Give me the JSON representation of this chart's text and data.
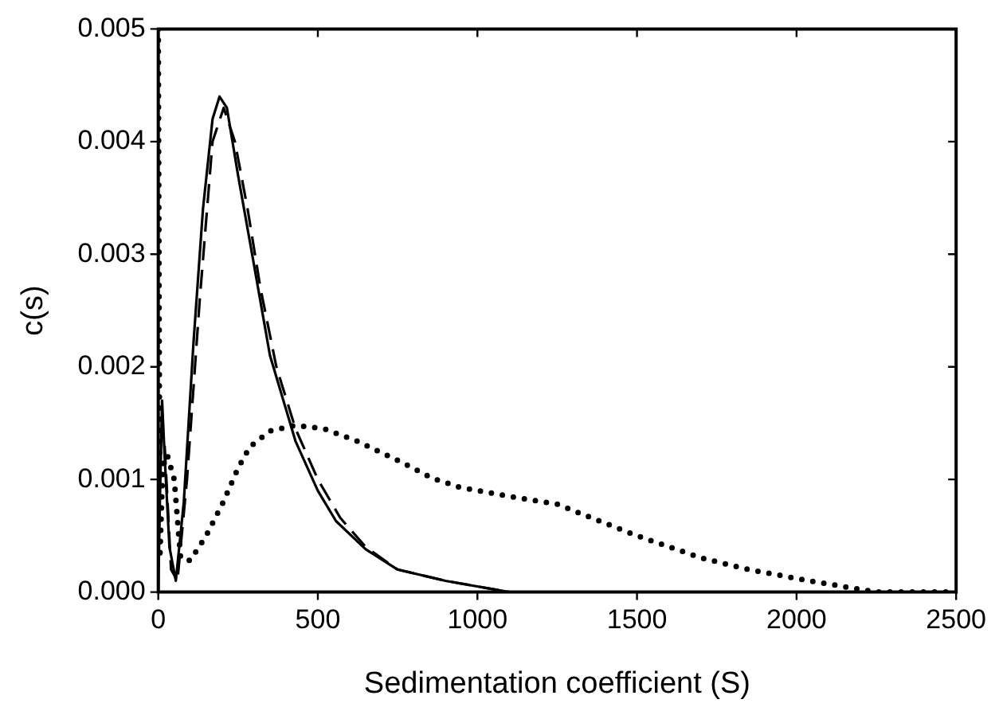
{
  "chart_data": {
    "type": "line",
    "xlabel": "Sedimentation coefficient (S)",
    "ylabel": "c(s)",
    "xlim": [
      0,
      2500
    ],
    "xticks": [
      0,
      500,
      1000,
      1500,
      2000,
      2500
    ],
    "ylim": [
      0,
      0.005
    ],
    "yticks": [
      {
        "value": 0,
        "label": "0.000"
      },
      {
        "value": 0.001,
        "label": "0.001"
      },
      {
        "value": 0.002,
        "label": "0.002"
      },
      {
        "value": 0.003,
        "label": "0.003"
      },
      {
        "value": 0.004,
        "label": "0.004"
      },
      {
        "value": 0.005,
        "label": "0.005"
      }
    ],
    "grid": false,
    "legend": false,
    "marker": "none",
    "series": [
      {
        "color": "#000000",
        "line_style": "solid",
        "x": [
          0,
          5,
          12,
          20,
          35,
          55,
          80,
          110,
          140,
          170,
          192,
          215,
          250,
          294,
          350,
          430,
          500,
          557,
          650,
          750,
          900,
          1100,
          1500,
          2500
        ],
        "values": [
          0,
          0.0008,
          0.0017,
          0.0012,
          0.0004,
          0.0001,
          0.0008,
          0.0022,
          0.0034,
          0.0042,
          0.0044,
          0.0043,
          0.0037,
          0.003,
          0.0021,
          0.00134,
          0.0009,
          0.00063,
          0.00038,
          0.0002,
          0.0001,
          0,
          0,
          0
        ]
      },
      {
        "color": "#000000",
        "line_style": "dashed",
        "x": [
          20,
          40,
          60,
          90,
          130,
          170,
          205,
          240,
          280,
          320,
          370,
          430,
          500,
          570,
          650,
          750,
          900,
          1100,
          2500
        ],
        "values": [
          0.0013,
          0.0002,
          0.0001,
          0.001,
          0.0026,
          0.004,
          0.0043,
          0.004,
          0.0034,
          0.0027,
          0.002,
          0.00145,
          0.001,
          0.00066,
          0.0004,
          0.0002,
          0.0001,
          0,
          0
        ]
      },
      {
        "color": "#000000",
        "line_style": "dotted",
        "x": [
          0,
          5,
          15,
          30,
          50,
          70,
          100,
          150,
          202,
          250,
          287,
          350,
          430,
          520,
          623,
          750,
          860,
          945,
          1100,
          1250,
          1366,
          1500,
          1705,
          1850,
          2040,
          2250,
          2500
        ],
        "values": [
          0.005,
          0.0003,
          0.0012,
          0.0012,
          0.001,
          0.0003,
          0.00028,
          0.0005,
          0.00079,
          0.0011,
          0.00129,
          0.00143,
          0.00148,
          0.00145,
          0.00134,
          0.00117,
          0.00101,
          0.00093,
          0.00085,
          0.00078,
          0.00065,
          0.0005,
          0.0003,
          0.0002,
          0.0001,
          0,
          0
        ]
      }
    ]
  }
}
